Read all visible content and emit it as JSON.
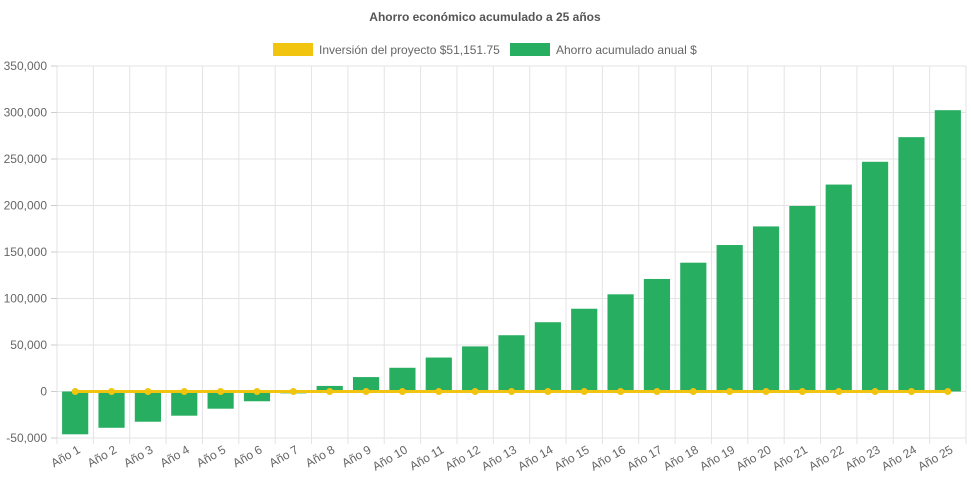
{
  "chart_data": {
    "type": "bar",
    "title": "Ahorro económico acumulado a 25 años",
    "legend_position": "top",
    "grid": true,
    "categories": [
      "Año 1",
      "Año 2",
      "Año 3",
      "Año 4",
      "Año 5",
      "Año 6",
      "Año 7",
      "Año 8",
      "Año 9",
      "Año 10",
      "Año 11",
      "Año 12",
      "Año 13",
      "Año 14",
      "Año 15",
      "Año 16",
      "Año 17",
      "Año 18",
      "Año 19",
      "Año 20",
      "Año 21",
      "Año 22",
      "Año 23",
      "Año 24",
      "Año 25"
    ],
    "series": [
      {
        "name": "Inversión del proyecto $51,151.75",
        "type": "line",
        "color": "#f1c40f",
        "values": [
          0,
          0,
          0,
          0,
          0,
          0,
          0,
          0,
          0,
          0,
          0,
          0,
          0,
          0,
          0,
          0,
          0,
          0,
          0,
          0,
          0,
          0,
          0,
          0,
          0
        ]
      },
      {
        "name": "Ahorro acumulado anual $",
        "type": "bar",
        "color": "#27ae60",
        "values": [
          -46000,
          -39000,
          -32500,
          -26000,
          -18500,
          -10500,
          -2000,
          6000,
          15500,
          25500,
          36500,
          48500,
          60500,
          74500,
          89000,
          104500,
          121000,
          138500,
          157500,
          177500,
          199500,
          222500,
          247000,
          273500,
          302500
        ]
      }
    ],
    "ylim": [
      -50000,
      350000
    ],
    "yticks": [
      "-50,000",
      "0",
      "50,000",
      "100,000",
      "150,000",
      "200,000",
      "250,000",
      "300,000",
      "350,000"
    ],
    "ytick_values": [
      -50000,
      0,
      50000,
      100000,
      150000,
      200000,
      250000,
      300000,
      350000
    ]
  }
}
